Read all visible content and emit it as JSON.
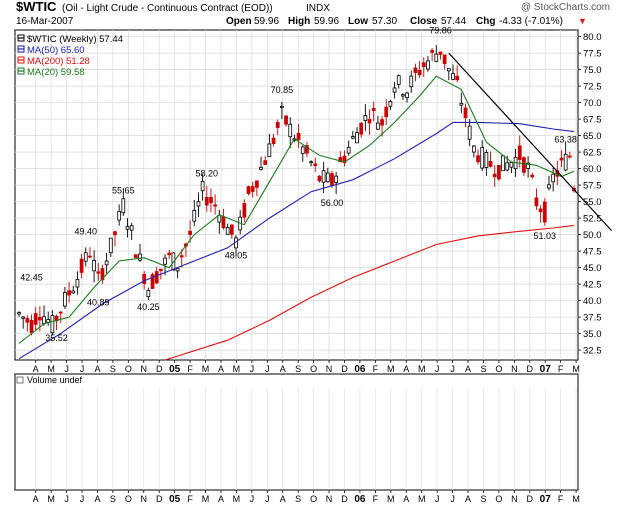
{
  "header": {
    "symbol_title": "$WTIC",
    "description": "(Oil - Light Crude - Continuous Contract (EOD))",
    "exchange": "INDX",
    "copyright": "@ StockCharts.com",
    "date": "16-Mar-2007",
    "open_label": "Open",
    "open_value": "59.96",
    "high_label": "High",
    "high_value": "59.96",
    "low_label": "Low",
    "low_value": "57.30",
    "close_label": "Close",
    "close_value": "57.44",
    "chg_label": "Chg",
    "chg_value": "-4.33 (-7.01%)",
    "chg_marker": "▼"
  },
  "legend": [
    {
      "text": "$WTIC (Weekly) 57.44",
      "color": "#000000"
    },
    {
      "text": "MA(50) 65.60",
      "color": "#1f1fb0"
    },
    {
      "text": "MA(200) 51.28",
      "color": "#e01010"
    },
    {
      "text": "MA(20) 59.58",
      "color": "#1a7a1a"
    }
  ],
  "volume_panel": {
    "label": "Volume undef"
  },
  "chart_data": {
    "type": "candlestick",
    "period": "Weekly",
    "x_axis_labels": [
      "A",
      "M",
      "J",
      "J",
      "A",
      "S",
      "O",
      "N",
      "D",
      "05",
      "F",
      "M",
      "A",
      "M",
      "J",
      "J",
      "A",
      "S",
      "O",
      "N",
      "D",
      "06",
      "F",
      "M",
      "A",
      "M",
      "J",
      "J",
      "A",
      "S",
      "O",
      "N",
      "D",
      "07",
      "F",
      "M"
    ],
    "y_ticks": [
      32.5,
      35.0,
      37.5,
      40.0,
      42.5,
      45.0,
      47.5,
      50.0,
      52.5,
      55.0,
      57.5,
      60.0,
      62.5,
      65.0,
      67.5,
      70.0,
      72.5,
      75.0,
      77.5,
      80.0
    ],
    "ylim": [
      31.0,
      81.0
    ],
    "annotations": [
      {
        "text": "42.45",
        "x": 3,
        "y": 42.45
      },
      {
        "text": "35.52",
        "x": 9,
        "y": 35.52
      },
      {
        "text": "49.40",
        "x": 16,
        "y": 49.4
      },
      {
        "text": "40.89",
        "x": 19,
        "y": 40.89
      },
      {
        "text": "55.65",
        "x": 25,
        "y": 55.65
      },
      {
        "text": "40.25",
        "x": 31,
        "y": 40.25
      },
      {
        "text": "58.20",
        "x": 45,
        "y": 58.2
      },
      {
        "text": "48.05",
        "x": 52,
        "y": 48.05
      },
      {
        "text": "70.85",
        "x": 63,
        "y": 70.85
      },
      {
        "text": "56.00",
        "x": 75,
        "y": 56.0
      },
      {
        "text": "79.86",
        "x": 101,
        "y": 79.86
      },
      {
        "text": "51.03",
        "x": 126,
        "y": 51.03
      },
      {
        "text": "63.38",
        "x": 131,
        "y": 63.38
      }
    ],
    "trendline": [
      [
        103,
        77.5
      ],
      [
        142,
        50.6
      ]
    ],
    "series": [
      {
        "name": "MA(50)",
        "color": "#1f1fb0",
        "points": [
          [
            0,
            31.2
          ],
          [
            10,
            35.0
          ],
          [
            20,
            39.5
          ],
          [
            30,
            43.0
          ],
          [
            40,
            45.5
          ],
          [
            50,
            48.0
          ],
          [
            60,
            52.5
          ],
          [
            70,
            56.5
          ],
          [
            80,
            58.3
          ],
          [
            90,
            61.5
          ],
          [
            100,
            65.3
          ],
          [
            104,
            67.0
          ],
          [
            110,
            67.0
          ],
          [
            120,
            66.8
          ],
          [
            128,
            66.0
          ],
          [
            133,
            65.6
          ]
        ]
      },
      {
        "name": "MA(200)",
        "color": "#e01010",
        "points": [
          [
            35,
            31.0
          ],
          [
            50,
            34.0
          ],
          [
            60,
            37.0
          ],
          [
            70,
            40.5
          ],
          [
            80,
            43.5
          ],
          [
            90,
            46.0
          ],
          [
            100,
            48.5
          ],
          [
            110,
            49.8
          ],
          [
            120,
            50.5
          ],
          [
            128,
            51.0
          ],
          [
            133,
            51.4
          ]
        ]
      },
      {
        "name": "MA(20)",
        "color": "#1a7a1a",
        "points": [
          [
            0,
            33.5
          ],
          [
            6,
            36.5
          ],
          [
            12,
            37.5
          ],
          [
            18,
            42.0
          ],
          [
            24,
            46.0
          ],
          [
            30,
            46.5
          ],
          [
            36,
            45.0
          ],
          [
            42,
            50.0
          ],
          [
            48,
            53.0
          ],
          [
            54,
            51.5
          ],
          [
            60,
            58.0
          ],
          [
            66,
            64.5
          ],
          [
            72,
            62.0
          ],
          [
            78,
            61.0
          ],
          [
            84,
            63.5
          ],
          [
            90,
            67.0
          ],
          [
            96,
            71.0
          ],
          [
            100,
            74.0
          ],
          [
            106,
            72.0
          ],
          [
            112,
            64.0
          ],
          [
            118,
            61.0
          ],
          [
            124,
            60.5
          ],
          [
            130,
            58.8
          ],
          [
            133,
            59.6
          ]
        ]
      }
    ],
    "price_path": [
      [
        0,
        38.0
      ],
      [
        3,
        36.5
      ],
      [
        5,
        38.5
      ],
      [
        8,
        36.2
      ],
      [
        11,
        40.0
      ],
      [
        14,
        43.5
      ],
      [
        17,
        47.5
      ],
      [
        19,
        43.0
      ],
      [
        22,
        48.0
      ],
      [
        25,
        54.5
      ],
      [
        28,
        48.0
      ],
      [
        31,
        42.0
      ],
      [
        33,
        44.0
      ],
      [
        36,
        46.5
      ],
      [
        38,
        45.5
      ],
      [
        41,
        50.0
      ],
      [
        44,
        56.5
      ],
      [
        47,
        54.5
      ],
      [
        50,
        51.0
      ],
      [
        52,
        49.0
      ],
      [
        55,
        56.0
      ],
      [
        58,
        60.0
      ],
      [
        61,
        64.5
      ],
      [
        63,
        68.0
      ],
      [
        66,
        65.0
      ],
      [
        69,
        62.0
      ],
      [
        72,
        58.5
      ],
      [
        75,
        58.0
      ],
      [
        78,
        62.0
      ],
      [
        81,
        65.5
      ],
      [
        84,
        68.5
      ],
      [
        87,
        67.0
      ],
      [
        90,
        73.0
      ],
      [
        93,
        72.0
      ],
      [
        96,
        75.0
      ],
      [
        99,
        77.0
      ],
      [
        101,
        78.0
      ],
      [
        103,
        75.0
      ],
      [
        105,
        72.5
      ],
      [
        107,
        68.0
      ],
      [
        109,
        63.0
      ],
      [
        112,
        61.0
      ],
      [
        115,
        60.0
      ],
      [
        118,
        61.0
      ],
      [
        120,
        62.0
      ],
      [
        122,
        60.0
      ],
      [
        124,
        55.0
      ],
      [
        126,
        53.5
      ],
      [
        128,
        58.5
      ],
      [
        130,
        60.5
      ],
      [
        132,
        62.0
      ],
      [
        133,
        57.44
      ]
    ]
  }
}
